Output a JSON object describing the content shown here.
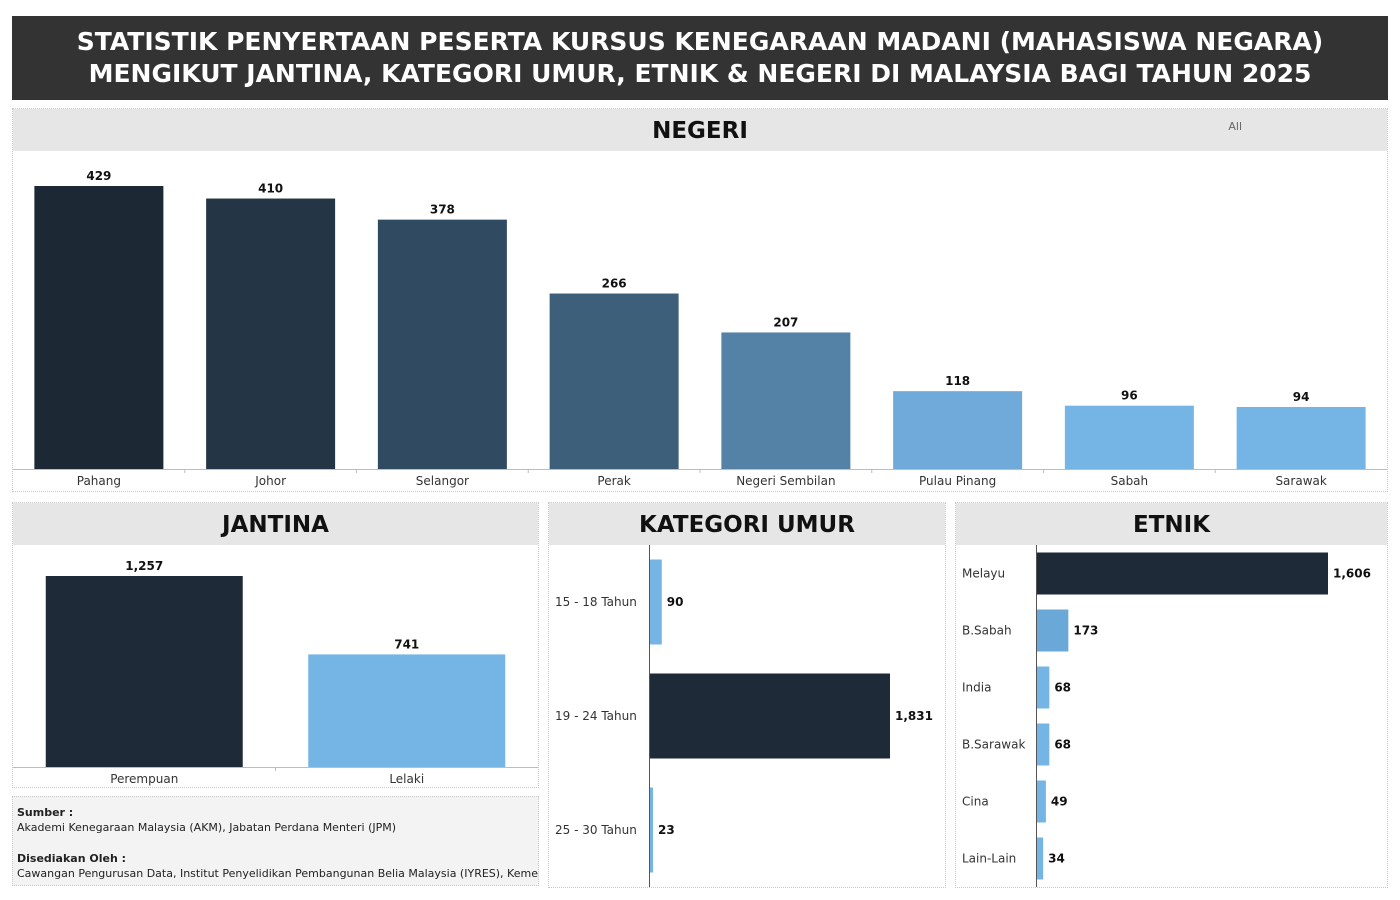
{
  "header": {
    "title_line1": "STATISTIK PENYERTAAN PESERTA KURSUS KENEGARAAN MADANI (MAHASISWA NEGARA)",
    "title_line2": "MENGIKUT JANTINA, KATEGORI UMUR, ETNIK & NEGERI DI MALAYSIA BAGI TAHUN 2025"
  },
  "filter": {
    "label": "All"
  },
  "footer": {
    "source_label": "Sumber :",
    "source_text": "Akademi Kenegaraan Malaysia (AKM), Jabatan Perdana Menteri (JPM)",
    "prepared_label": "Disediakan Oleh :",
    "prepared_text": "Cawangan Pengurusan Data, Institut Penyelidikan Pembangunan Belia Malaysia (IYRES), Kementeri.."
  },
  "colors": {
    "darkest": "#1e2a38",
    "light_blue": "#74b5e5",
    "mid_blue": "#6aa8d8"
  },
  "chart_data": [
    {
      "type": "bar",
      "title": "NEGERI",
      "categories": [
        "Pahang",
        "Johor",
        "Selangor",
        "Perak",
        "Negeri Sembilan",
        "Pulau Pinang",
        "Sabah",
        "Sarawak"
      ],
      "values": [
        429,
        410,
        378,
        266,
        207,
        118,
        96,
        94
      ],
      "value_labels": [
        "429",
        "410",
        "378",
        "266",
        "207",
        "118",
        "96",
        "94"
      ],
      "colors": [
        "#1c2834",
        "#243546",
        "#2f4a61",
        "#3d5f7a",
        "#5482a7",
        "#6faadb",
        "#74b5e5",
        "#74b5e5"
      ],
      "ylim": [
        0,
        429
      ]
    },
    {
      "type": "bar",
      "title": "JANTINA",
      "categories": [
        "Perempuan",
        "Lelaki"
      ],
      "values": [
        1257,
        741
      ],
      "value_labels": [
        "1,257",
        "741"
      ],
      "colors": [
        "#1e2a38",
        "#74b5e5"
      ],
      "ylim": [
        0,
        1257
      ]
    },
    {
      "type": "bar",
      "orientation": "horizontal",
      "title": "KATEGORI UMUR",
      "categories": [
        "15 - 18 Tahun",
        "19 - 24 Tahun",
        "25 - 30 Tahun"
      ],
      "values": [
        90,
        1831,
        23
      ],
      "value_labels": [
        "90",
        "1,831",
        "23"
      ],
      "colors": [
        "#74b5e5",
        "#1e2a38",
        "#74b5e5"
      ],
      "xlim": [
        0,
        1831
      ]
    },
    {
      "type": "bar",
      "orientation": "horizontal",
      "title": "ETNIK",
      "categories": [
        "Melayu",
        "B.Sabah",
        "India",
        "B.Sarawak",
        "Cina",
        "Lain-Lain"
      ],
      "values": [
        1606,
        173,
        68,
        68,
        49,
        34
      ],
      "value_labels": [
        "1,606",
        "173",
        "68",
        "68",
        "49",
        "34"
      ],
      "colors": [
        "#1e2a38",
        "#6aa8d8",
        "#74b5e5",
        "#74b5e5",
        "#74b5e5",
        "#74b5e5"
      ],
      "xlim": [
        0,
        1606
      ]
    }
  ]
}
